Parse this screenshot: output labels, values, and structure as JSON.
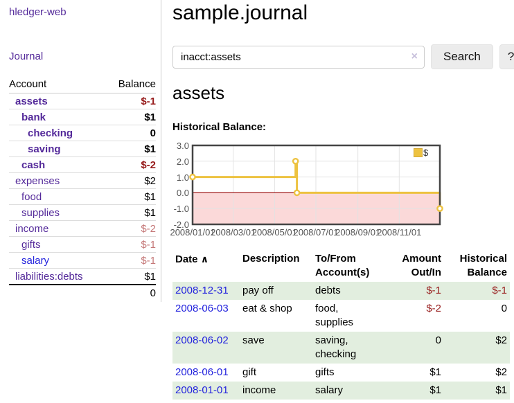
{
  "colors": {
    "link_purple": "#542a9a",
    "link_blue": "#2222dd",
    "negative_strong": "#971c1c",
    "negative_dim": "#c57878",
    "row_stripe_green": "#e2eedf",
    "series_gold": "#edc240"
  },
  "sidebar": {
    "brand": "hledger-web",
    "nav": [
      {
        "label": "Journal"
      }
    ],
    "accounts_table": {
      "account_header": "Account",
      "balance_header": "Balance",
      "rows": [
        {
          "name": "assets",
          "balance": "$-1",
          "indent": 0,
          "bold": true,
          "name_color": "purple",
          "balance_style": "neg-strong"
        },
        {
          "name": "bank",
          "balance": "$1",
          "indent": 1,
          "bold": true,
          "name_color": "purple",
          "balance_style": "normal"
        },
        {
          "name": "checking",
          "balance": "0",
          "indent": 2,
          "bold": true,
          "name_color": "purple",
          "balance_style": "normal"
        },
        {
          "name": "saving",
          "balance": "$1",
          "indent": 2,
          "bold": true,
          "name_color": "purple",
          "balance_style": "normal"
        },
        {
          "name": "cash",
          "balance": "$-2",
          "indent": 1,
          "bold": true,
          "name_color": "purple",
          "balance_style": "neg-strong"
        },
        {
          "name": "expenses",
          "balance": "$2",
          "indent": 0,
          "bold": false,
          "name_color": "purple",
          "balance_style": "normal"
        },
        {
          "name": "food",
          "balance": "$1",
          "indent": 1,
          "bold": false,
          "name_color": "purple",
          "balance_style": "normal"
        },
        {
          "name": "supplies",
          "balance": "$1",
          "indent": 1,
          "bold": false,
          "name_color": "purple",
          "balance_style": "normal"
        },
        {
          "name": "income",
          "balance": "$-2",
          "indent": 0,
          "bold": false,
          "name_color": "purple",
          "balance_style": "neg-dim"
        },
        {
          "name": "gifts",
          "balance": "$-1",
          "indent": 1,
          "bold": false,
          "name_color": "purple",
          "balance_style": "neg-dim"
        },
        {
          "name": "salary",
          "balance": "$-1",
          "indent": 1,
          "bold": false,
          "name_color": "blue",
          "balance_style": "neg-dim"
        },
        {
          "name": "liabilities:debts",
          "balance": "$1",
          "indent": 0,
          "bold": false,
          "name_color": "purple",
          "balance_style": "normal"
        }
      ],
      "total": "0"
    }
  },
  "main": {
    "title": "sample.journal",
    "search": {
      "value": "inacct:assets",
      "clear_icon": "×",
      "search_button": "Search",
      "help_button": "?"
    },
    "account_heading": "assets",
    "chart_title": "Historical Balance:"
  },
  "chart_data": {
    "type": "line",
    "step": true,
    "title": "Historical Balance:",
    "series": [
      {
        "name": "$",
        "color": "#edc240",
        "points": [
          [
            "2008-01-01",
            1
          ],
          [
            "2008-06-01",
            2
          ],
          [
            "2008-06-03",
            0
          ],
          [
            "2008-12-31",
            -1
          ]
        ]
      }
    ],
    "xrange": [
      "2008-01-01",
      "2008-12-31"
    ],
    "ylim": [
      -2,
      3
    ],
    "yticks": [
      3,
      2,
      1,
      0,
      -1,
      -2
    ],
    "xticks": [
      [
        "2008-01-01",
        "2008/01/01"
      ],
      [
        "2008-03-01",
        "2008/03/01"
      ],
      [
        "2008-05-01",
        "2008/05/01"
      ],
      [
        "2008-07-01",
        "2008/07/01"
      ],
      [
        "2008-09-01",
        "2008/09/01"
      ],
      [
        "2008-11-01",
        "2008/11/01"
      ]
    ],
    "legend": {
      "label": "$",
      "position": "top-right"
    },
    "grid": true,
    "style": {
      "negative_fill": "#fbd9d9",
      "zero_line": "#a01818",
      "grid_line": "#e3e3e3",
      "plot_border": "#454545",
      "tick_text": "#545454",
      "marker_fill": "#ffffff"
    }
  },
  "register_table": {
    "headers": {
      "date": "Date",
      "sort_icon": "∧",
      "description": "Description",
      "accounts": "To/From Account(s)",
      "amount": "Amount Out/In",
      "balance": "Historical Balance"
    },
    "rows": [
      {
        "date": "2008-12-31",
        "description": "pay off",
        "accounts": "debts",
        "amount": "$-1",
        "amount_neg": true,
        "balance": "$-1",
        "balance_neg": true
      },
      {
        "date": "2008-06-03",
        "description": "eat & shop",
        "accounts": "food, supplies",
        "amount": "$-2",
        "amount_neg": true,
        "balance": "0",
        "balance_neg": false
      },
      {
        "date": "2008-06-02",
        "description": "save",
        "accounts": "saving, checking",
        "amount": "0",
        "amount_neg": false,
        "balance": "$2",
        "balance_neg": false
      },
      {
        "date": "2008-06-01",
        "description": "gift",
        "accounts": "gifts",
        "amount": "$1",
        "amount_neg": false,
        "balance": "$2",
        "balance_neg": false
      },
      {
        "date": "2008-01-01",
        "description": "income",
        "accounts": "salary",
        "amount": "$1",
        "amount_neg": false,
        "balance": "$1",
        "balance_neg": false
      }
    ]
  }
}
